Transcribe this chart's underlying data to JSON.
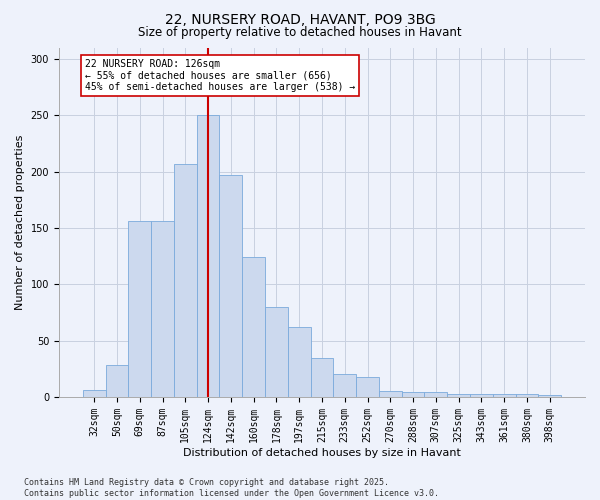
{
  "title": "22, NURSERY ROAD, HAVANT, PO9 3BG",
  "subtitle": "Size of property relative to detached houses in Havant",
  "xlabel": "Distribution of detached houses by size in Havant",
  "ylabel": "Number of detached properties",
  "categories": [
    "32sqm",
    "50sqm",
    "69sqm",
    "87sqm",
    "105sqm",
    "124sqm",
    "142sqm",
    "160sqm",
    "178sqm",
    "197sqm",
    "215sqm",
    "233sqm",
    "252sqm",
    "270sqm",
    "288sqm",
    "307sqm",
    "325sqm",
    "343sqm",
    "361sqm",
    "380sqm",
    "398sqm"
  ],
  "bar_heights": [
    6,
    28,
    156,
    156,
    207,
    250,
    197,
    124,
    80,
    62,
    35,
    20,
    18,
    5,
    4,
    4,
    3,
    3,
    3,
    3,
    2
  ],
  "bar_color": "#ccd9ee",
  "bar_edge_color": "#7aaadc",
  "vline_color": "#cc0000",
  "vline_x_index": 5.0,
  "annotation_text": "22 NURSERY ROAD: 126sqm\n← 55% of detached houses are smaller (656)\n45% of semi-detached houses are larger (538) →",
  "annotation_box_color": "#ffffff",
  "annotation_box_edge": "#cc0000",
  "footer_line1": "Contains HM Land Registry data © Crown copyright and database right 2025.",
  "footer_line2": "Contains public sector information licensed under the Open Government Licence v3.0.",
  "bg_color": "#eef2fb",
  "grid_color": "#c8d0e0",
  "ylim": [
    0,
    310
  ],
  "yticks": [
    0,
    50,
    100,
    150,
    200,
    250,
    300
  ],
  "title_fontsize": 10,
  "subtitle_fontsize": 8.5,
  "tick_fontsize": 7,
  "ylabel_fontsize": 8,
  "xlabel_fontsize": 8,
  "footer_fontsize": 6,
  "ann_fontsize": 7
}
